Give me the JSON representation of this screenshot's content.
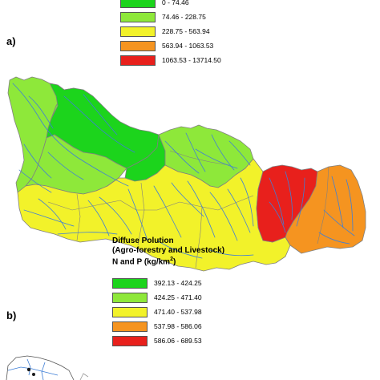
{
  "panels": {
    "a": {
      "label": "a)",
      "legend": {
        "items": [
          {
            "range": "0 - 74.46",
            "color": "#1cd41c"
          },
          {
            "range": "74.46 - 228.75",
            "color": "#8ee83a"
          },
          {
            "range": "228.75 - 563.94",
            "color": "#f2f22a"
          },
          {
            "range": "563.94 - 1063.53",
            "color": "#f59420"
          },
          {
            "range": "1063.53 - 13714.50",
            "color": "#e8201c"
          }
        ]
      }
    },
    "b": {
      "label": "b)",
      "legend": {
        "title_lines": [
          "Diffuse Polution",
          "(Agro-forestry and Livestock)",
          "N and P (kg/km",
          "2",
          ")"
        ],
        "items": [
          {
            "range": "392.13 - 424.25",
            "color": "#1cd41c"
          },
          {
            "range": "424.25 - 471.40",
            "color": "#8ee83a"
          },
          {
            "range": "471.40 - 537.98",
            "color": "#f2f22a"
          },
          {
            "range": "537.98 - 586.06",
            "color": "#f59420"
          },
          {
            "range": "586.06 - 689.53",
            "color": "#e8201c"
          }
        ]
      }
    }
  },
  "colors": {
    "river": "#3f7fd6",
    "boundary": "#808080"
  }
}
